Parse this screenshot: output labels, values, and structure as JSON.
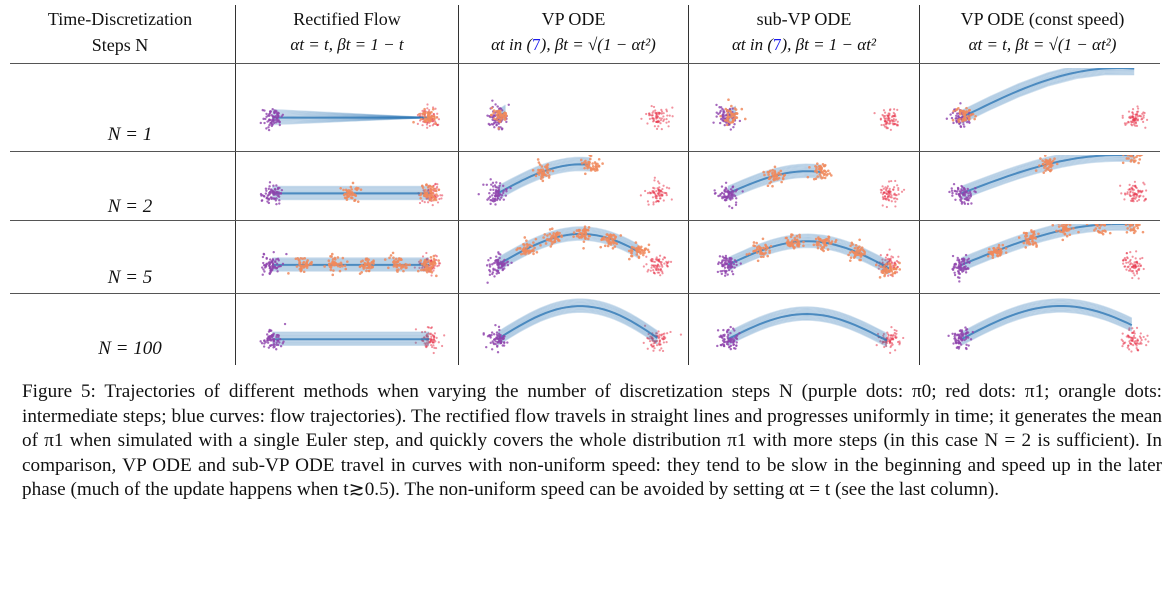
{
  "header": {
    "col0_line1": "Time-Discretization",
    "col0_line2": "Steps N",
    "columns": [
      {
        "title": "Rectified Flow",
        "sub": "αt = t, βt = 1 − t"
      },
      {
        "title": "VP ODE",
        "sub_a": "αt in (",
        "ref": "7",
        "sub_b": "), βt = √(1 − αt²)"
      },
      {
        "title": "sub-VP ODE",
        "sub_a": "αt in (",
        "ref": "7",
        "sub_b": "), βt = 1 − αt²"
      },
      {
        "title": "VP ODE (const speed)",
        "sub": "αt = t, βt = √(1 − αt²)"
      }
    ]
  },
  "rows": [
    {
      "label": "N = 1"
    },
    {
      "label": "N = 2"
    },
    {
      "label": "N = 5"
    },
    {
      "label": "N = 100"
    }
  ],
  "colors": {
    "purple": "#8e44ad",
    "red": "#e8384f",
    "orange": "#f08a5d",
    "blue": "#2f78b5"
  },
  "caption": {
    "text": "Figure 5: Trajectories of different methods when varying the number of discretization steps N (purple dots: π0; red dots: π1; orangle dots: intermediate steps; blue curves: flow trajectories). The rectified flow travels in straight lines and progresses uniformly in time; it generates the mean of π1 when simulated with a single Euler step, and quickly covers the whole distribution π1 with more steps (in this case N = 2 is sufficient). In comparison, VP ODE and sub-VP ODE travel in curves with non-uniform speed: they tend to be slow in the beginning and speed up in the later phase (much of the update happens when t≳0.5). The non-uniform speed can be avoided by setting αt = t (see the last column)."
  }
}
